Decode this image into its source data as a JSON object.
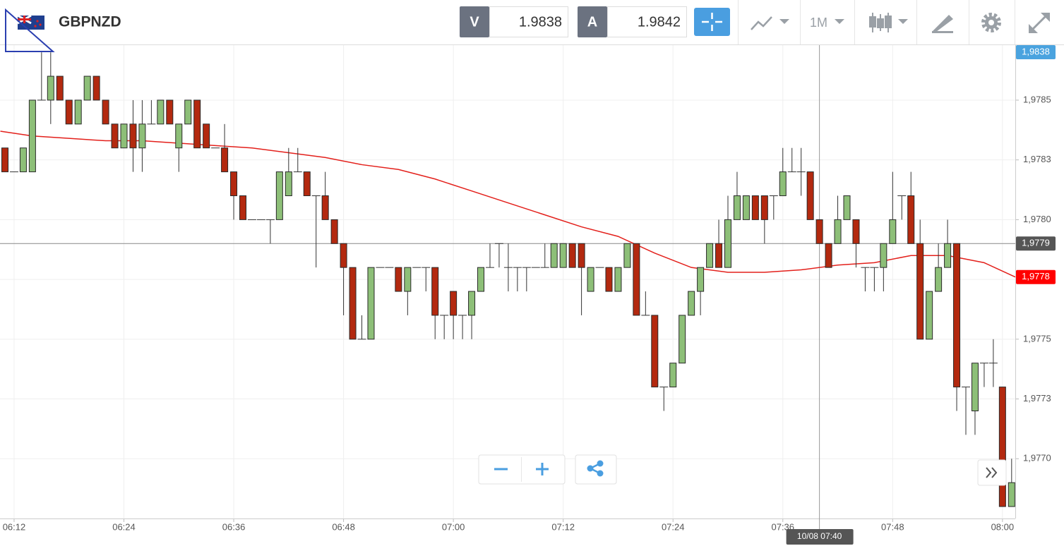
{
  "header": {
    "symbol": "GBPNZD",
    "sell_label": "V",
    "sell_price": 1.9838,
    "buy_label": "A",
    "buy_price": 1.9842,
    "interval": "1M"
  },
  "chart_data": {
    "type": "candlestick",
    "x": [
      11,
      12,
      13,
      14,
      15,
      16,
      17,
      18,
      19,
      20,
      21,
      22,
      23,
      24,
      25,
      26,
      27,
      28,
      29,
      30,
      31,
      32,
      33,
      34,
      35,
      36,
      37,
      38,
      39,
      40,
      41,
      42,
      43,
      44,
      45,
      46,
      47,
      48,
      49,
      50,
      51,
      52,
      53,
      54,
      55,
      56,
      57,
      58,
      59,
      60,
      61,
      62,
      63,
      64,
      65,
      66,
      67,
      68,
      69,
      70,
      71,
      72,
      73,
      74,
      75,
      76,
      77,
      78,
      79,
      80,
      81,
      82,
      83,
      84,
      85,
      86,
      87,
      88,
      89,
      90,
      91,
      92,
      93,
      94,
      95,
      96,
      97,
      98,
      99,
      100,
      101,
      102,
      103,
      104,
      105,
      106,
      107,
      108,
      109,
      110,
      111,
      112,
      113,
      114,
      115,
      116,
      117,
      118,
      119,
      120,
      121
    ],
    "open": [
      1.9783,
      1.9782,
      1.9782,
      1.9782,
      1.9785,
      1.9785,
      1.9786,
      1.9785,
      1.9784,
      1.9785,
      1.9786,
      1.9785,
      1.9784,
      1.9783,
      1.9784,
      1.9783,
      1.9784,
      1.9784,
      1.9785,
      1.9783,
      1.9784,
      1.9785,
      1.9784,
      1.9783,
      1.9783,
      1.9782,
      1.9781,
      1.978,
      1.978,
      1.978,
      1.978,
      1.9781,
      1.9782,
      1.9782,
      1.9781,
      1.9781,
      1.978,
      1.9779,
      1.9778,
      1.9775,
      1.9775,
      1.9778,
      1.9778,
      1.9778,
      1.9777,
      1.9778,
      1.9778,
      1.9778,
      1.9776,
      1.9777,
      1.9776,
      1.9776,
      1.9777,
      1.9778,
      1.9779,
      1.9778,
      1.9778,
      1.9778,
      1.9778,
      1.9778,
      1.9778,
      1.9778,
      1.9779,
      1.9779,
      1.9777,
      1.9778,
      1.9778,
      1.9777,
      1.9778,
      1.9779,
      1.9776,
      1.9776,
      1.9773,
      1.9773,
      1.9774,
      1.9776,
      1.9777,
      1.9778,
      1.9779,
      1.9778,
      1.978,
      1.978,
      1.9781,
      1.9781,
      1.9781,
      1.9781,
      1.9782,
      1.9782,
      1.9782,
      1.978,
      1.9779,
      1.9779,
      1.978,
      1.978,
      1.9778,
      1.9778,
      1.9778,
      1.9779,
      1.9781,
      1.9781,
      1.9779,
      1.9775,
      1.9777,
      1.9778,
      1.9779,
      1.9773,
      1.9772,
      1.9774,
      1.9774,
      1.9773,
      1.9768
    ],
    "high": [
      1.9783,
      1.9782,
      1.9783,
      1.9785,
      1.9787,
      1.9787,
      1.9786,
      1.9785,
      1.9785,
      1.9786,
      1.9786,
      1.9785,
      1.9784,
      1.9784,
      1.9785,
      1.9785,
      1.9785,
      1.9785,
      1.9785,
      1.9784,
      1.9785,
      1.9785,
      1.9784,
      1.9783,
      1.9784,
      1.9782,
      1.9781,
      1.978,
      1.978,
      1.978,
      1.9782,
      1.9783,
      1.9783,
      1.9782,
      1.9781,
      1.9782,
      1.978,
      1.9779,
      1.9778,
      1.9776,
      1.9778,
      1.9778,
      1.9778,
      1.9778,
      1.9778,
      1.9778,
      1.9778,
      1.9778,
      1.9776,
      1.9777,
      1.9776,
      1.9777,
      1.9778,
      1.9779,
      1.9779,
      1.9779,
      1.9778,
      1.9778,
      1.9778,
      1.9779,
      1.9779,
      1.9779,
      1.9779,
      1.9779,
      1.9778,
      1.9778,
      1.9778,
      1.9778,
      1.9779,
      1.9779,
      1.9777,
      1.9776,
      1.9773,
      1.9774,
      1.9776,
      1.9777,
      1.9778,
      1.9779,
      1.978,
      1.9781,
      1.9782,
      1.9781,
      1.9781,
      1.9781,
      1.9781,
      1.9783,
      1.9783,
      1.9783,
      1.9782,
      1.978,
      1.9779,
      1.9781,
      1.9781,
      1.978,
      1.9778,
      1.9778,
      1.9779,
      1.9782,
      1.9781,
      1.9782,
      1.978,
      1.9777,
      1.9779,
      1.978,
      1.9779,
      1.9773,
      1.9774,
      1.9774,
      1.9775,
      1.9773,
      1.977
    ],
    "low": [
      1.9782,
      1.9782,
      1.9782,
      1.9782,
      1.9785,
      1.9784,
      1.9785,
      1.9784,
      1.9784,
      1.9785,
      1.9785,
      1.9784,
      1.9783,
      1.9783,
      1.9782,
      1.9782,
      1.9784,
      1.9784,
      1.9784,
      1.9782,
      1.9784,
      1.9783,
      1.9783,
      1.9783,
      1.9782,
      1.978,
      1.978,
      1.978,
      1.978,
      1.9779,
      1.978,
      1.9781,
      1.9782,
      1.9781,
      1.9778,
      1.978,
      1.9779,
      1.9776,
      1.9775,
      1.9775,
      1.9775,
      1.9778,
      1.9778,
      1.9777,
      1.9776,
      1.9778,
      1.9777,
      1.9775,
      1.9775,
      1.9775,
      1.9775,
      1.9775,
      1.9777,
      1.9778,
      1.9778,
      1.9777,
      1.9777,
      1.9777,
      1.9778,
      1.9778,
      1.9778,
      1.9778,
      1.9778,
      1.9776,
      1.9777,
      1.9778,
      1.9777,
      1.9777,
      1.9778,
      1.9776,
      1.9776,
      1.9773,
      1.9772,
      1.9773,
      1.9774,
      1.9776,
      1.9776,
      1.9778,
      1.9778,
      1.9778,
      1.978,
      1.978,
      1.978,
      1.9779,
      1.978,
      1.9781,
      1.9782,
      1.9781,
      1.978,
      1.9779,
      1.9778,
      1.9779,
      1.978,
      1.9778,
      1.9777,
      1.9777,
      1.9777,
      1.9779,
      1.978,
      1.9779,
      1.9775,
      1.9775,
      1.9777,
      1.9778,
      1.9772,
      1.9771,
      1.9771,
      1.9773,
      1.9773,
      1.9768,
      1.9768
    ],
    "close": [
      1.9782,
      1.9782,
      1.9783,
      1.9785,
      1.9785,
      1.9786,
      1.9785,
      1.9784,
      1.9785,
      1.9786,
      1.9785,
      1.9784,
      1.9783,
      1.9784,
      1.9783,
      1.9784,
      1.9784,
      1.9785,
      1.9784,
      1.9784,
      1.9785,
      1.9783,
      1.9783,
      1.9783,
      1.9782,
      1.9781,
      1.978,
      1.978,
      1.978,
      1.978,
      1.9782,
      1.9782,
      1.9782,
      1.9781,
      1.9781,
      1.978,
      1.9779,
      1.9778,
      1.9775,
      1.9775,
      1.9778,
      1.9778,
      1.9778,
      1.9777,
      1.9778,
      1.9778,
      1.9778,
      1.9776,
      1.9776,
      1.9776,
      1.9776,
      1.9777,
      1.9778,
      1.9778,
      1.9779,
      1.9778,
      1.9778,
      1.9778,
      1.9778,
      1.9778,
      1.9779,
      1.9779,
      1.9778,
      1.9778,
      1.9778,
      1.9778,
      1.9777,
      1.9778,
      1.9779,
      1.9776,
      1.9776,
      1.9773,
      1.9773,
      1.9774,
      1.9776,
      1.9777,
      1.9778,
      1.9779,
      1.9778,
      1.978,
      1.9781,
      1.9781,
      1.978,
      1.978,
      1.9781,
      1.9782,
      1.9782,
      1.9782,
      1.978,
      1.9779,
      1.9778,
      1.978,
      1.9781,
      1.9779,
      1.9778,
      1.9778,
      1.9779,
      1.978,
      1.9781,
      1.9779,
      1.9775,
      1.9777,
      1.9778,
      1.9779,
      1.9773,
      1.9773,
      1.9774,
      1.9774,
      1.9774,
      1.9768,
      1.9769
    ],
    "up_color": "#8dbf78",
    "down_color": "#b3290f",
    "ma": {
      "color": "#e3201b",
      "x": [
        10.5,
        14,
        18,
        22,
        26,
        30,
        34,
        38,
        42,
        46,
        50,
        54,
        58,
        62,
        66,
        70,
        74,
        78,
        82,
        86,
        90,
        94,
        98,
        102,
        106,
        110,
        114,
        118,
        121.4
      ],
      "values": [
        1.97837,
        1.97835,
        1.97834,
        1.97833,
        1.97833,
        1.97832,
        1.97831,
        1.9783,
        1.97828,
        1.97826,
        1.97823,
        1.97821,
        1.97817,
        1.97812,
        1.97807,
        1.97802,
        1.97797,
        1.97793,
        1.97786,
        1.9778,
        1.97778,
        1.97778,
        1.97779,
        1.97781,
        1.97782,
        1.97785,
        1.97785,
        1.97782,
        1.97776
      ]
    },
    "xlim": [
      10.46,
      121.4
    ],
    "ylim": [
      1.97675,
      1.97873
    ],
    "xticks": [
      {
        "value": 12,
        "label": "06:12"
      },
      {
        "value": 24,
        "label": "06:24"
      },
      {
        "value": 36,
        "label": "06:36"
      },
      {
        "value": 48,
        "label": "06:48"
      },
      {
        "value": 60,
        "label": "07:00"
      },
      {
        "value": 72,
        "label": "07:12"
      },
      {
        "value": 84,
        "label": "07:24"
      },
      {
        "value": 96,
        "label": "07:36"
      },
      {
        "value": 108,
        "label": "07:48"
      },
      {
        "value": 120,
        "label": "08:00"
      }
    ],
    "yticks": [
      {
        "value": 1.9785,
        "label": "1,9785"
      },
      {
        "value": 1.97825,
        "label": "1,9783"
      },
      {
        "value": 1.978,
        "label": "1,9780"
      },
      {
        "value": 1.97775,
        "label": "1,9778"
      },
      {
        "value": 1.9775,
        "label": "1,9775"
      },
      {
        "value": 1.97725,
        "label": "1,9773"
      },
      {
        "value": 1.977,
        "label": "1,9770"
      }
    ],
    "grid": true,
    "price_tags": [
      {
        "label": "1,9838",
        "color": "#4aa3df"
      },
      {
        "value": 1.97776,
        "label": "1,9778",
        "color": "#ff0000"
      }
    ],
    "crosshair": {
      "x": 100,
      "y": 1.9779,
      "x_label": "10/08 07:40",
      "y_label": "1,9779"
    }
  }
}
